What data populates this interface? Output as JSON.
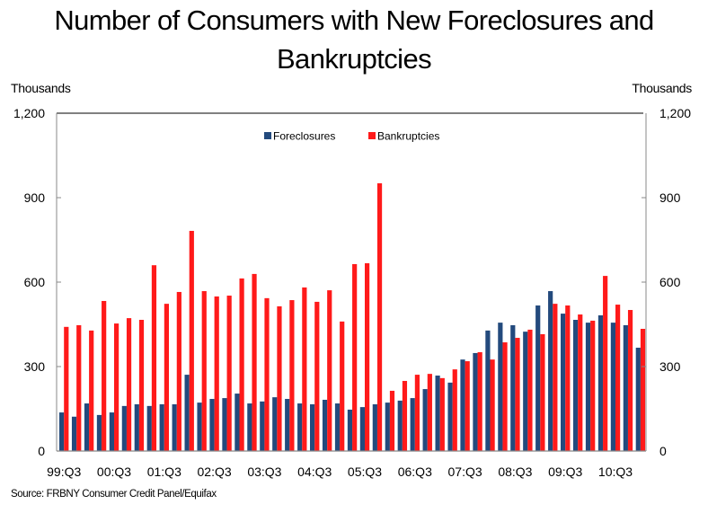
{
  "chart_data": {
    "type": "bar",
    "title": "Number of Consumers with New Foreclosures and Bankruptcies",
    "title_lines": [
      "Number of Consumers with New Foreclosures and",
      "Bankruptcies"
    ],
    "ylabel_left": "Thousands",
    "ylabel_right": "Thousands",
    "xlabel": "",
    "ylim": [
      0,
      1200
    ],
    "yticks": [
      0,
      300,
      600,
      900,
      1200
    ],
    "ytick_labels": [
      "0",
      "300",
      "600",
      "900",
      "1,200"
    ],
    "grid": false,
    "legend_position": "top-center",
    "categories": [
      "99:Q3",
      "99:Q4",
      "00:Q1",
      "00:Q2",
      "00:Q3",
      "00:Q4",
      "01:Q1",
      "01:Q2",
      "01:Q3",
      "01:Q4",
      "02:Q1",
      "02:Q2",
      "02:Q3",
      "02:Q4",
      "03:Q1",
      "03:Q2",
      "03:Q3",
      "03:Q4",
      "04:Q1",
      "04:Q2",
      "04:Q3",
      "04:Q4",
      "05:Q1",
      "05:Q2",
      "05:Q3",
      "05:Q4",
      "06:Q1",
      "06:Q2",
      "06:Q3",
      "06:Q4",
      "07:Q1",
      "07:Q2",
      "07:Q3",
      "07:Q4",
      "08:Q1",
      "08:Q2",
      "08:Q3",
      "08:Q4",
      "09:Q1",
      "09:Q2",
      "09:Q3",
      "09:Q4",
      "10:Q1",
      "10:Q2",
      "10:Q3",
      "10:Q4",
      "11:Q1"
    ],
    "xtick_labels": [
      "99:Q3",
      "00:Q3",
      "01:Q3",
      "02:Q3",
      "03:Q3",
      "04:Q3",
      "05:Q3",
      "06:Q3",
      "07:Q3",
      "08:Q3",
      "09:Q3",
      "10:Q3"
    ],
    "series": [
      {
        "name": "Foreclosures",
        "color": "#234a7d",
        "values": [
          137,
          122,
          169,
          128,
          137,
          160,
          166,
          160,
          166,
          166,
          271,
          172,
          185,
          188,
          204,
          169,
          176,
          191,
          185,
          169,
          166,
          182,
          169,
          147,
          156,
          166,
          172,
          179,
          188,
          220,
          268,
          243,
          325,
          348,
          428,
          456,
          447,
          424,
          517,
          568,
          488,
          466,
          456,
          482,
          456,
          447,
          367
        ]
      },
      {
        "name": "Bankruptcies",
        "color": "#ff1a1a",
        "values": [
          441,
          447,
          428,
          533,
          453,
          472,
          466,
          660,
          523,
          565,
          782,
          568,
          549,
          552,
          613,
          629,
          543,
          514,
          536,
          581,
          530,
          571,
          460,
          664,
          667,
          951,
          214,
          249,
          271,
          274,
          259,
          290,
          319,
          351,
          325,
          386,
          402,
          431,
          415,
          523,
          517,
          485,
          463,
          622,
          520,
          501,
          434
        ]
      }
    ]
  },
  "source": "Source: FRBNY Consumer Credit Panel/Equifax"
}
